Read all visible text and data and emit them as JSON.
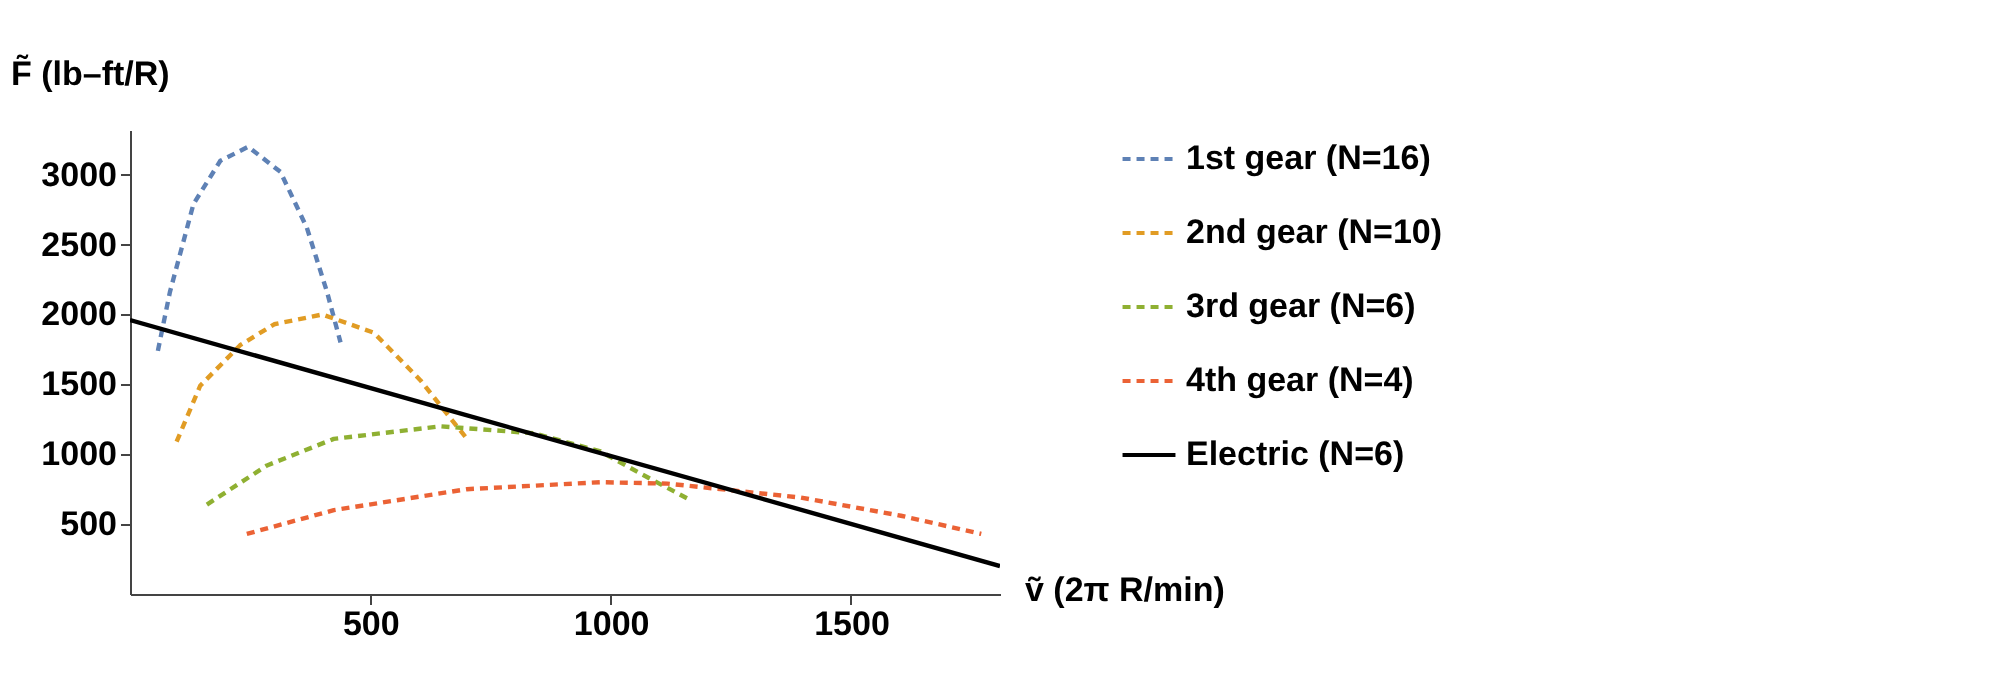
{
  "chart_data": {
    "type": "line",
    "xlabel": "ṽ (2π R/min)",
    "ylabel": "F̃ (lb–ft/R)",
    "xlim": [
      0,
      1810
    ],
    "ylim": [
      0,
      3320
    ],
    "xticks": [
      500,
      1000,
      1500
    ],
    "yticks": [
      500,
      1000,
      1500,
      2000,
      2500,
      3000
    ],
    "grid": false,
    "legend": "right",
    "marker": "none",
    "series": [
      {
        "name": "1st gear (N=16)",
        "color": "#5e81b5",
        "line_style": "dashed",
        "x": [
          58,
          83,
          132,
          188,
          246,
          313,
          368,
          410,
          438
        ],
        "values": [
          1740,
          2160,
          2790,
          3100,
          3200,
          3020,
          2620,
          2160,
          1800
        ]
      },
      {
        "name": "2nd gear (N=10)",
        "color": "#e19c24",
        "line_style": "dashed",
        "x": [
          97,
          146,
          229,
          300,
          400,
          507,
          604,
          701
        ],
        "values": [
          1090,
          1490,
          1780,
          1930,
          2000,
          1870,
          1530,
          1110
        ]
      },
      {
        "name": "3rd gear (N=6)",
        "color": "#8fb032",
        "line_style": "dashed",
        "x": [
          160,
          285,
          424,
          646,
          840,
          979,
          1063,
          1167
        ],
        "values": [
          640,
          920,
          1110,
          1200,
          1150,
          1020,
          860,
          670
        ]
      },
      {
        "name": "4th gear (N=4)",
        "color": "#eb6235",
        "line_style": "dashed",
        "x": [
          243,
          424,
          701,
          979,
          1118,
          1396,
          1604,
          1771
        ],
        "values": [
          430,
          600,
          750,
          800,
          790,
          690,
          560,
          430
        ]
      },
      {
        "name": "Electric (N=6)",
        "color": "#000000",
        "line_style": "solid",
        "x": [
          0,
          1810
        ],
        "values": [
          1960,
          200
        ]
      }
    ]
  }
}
